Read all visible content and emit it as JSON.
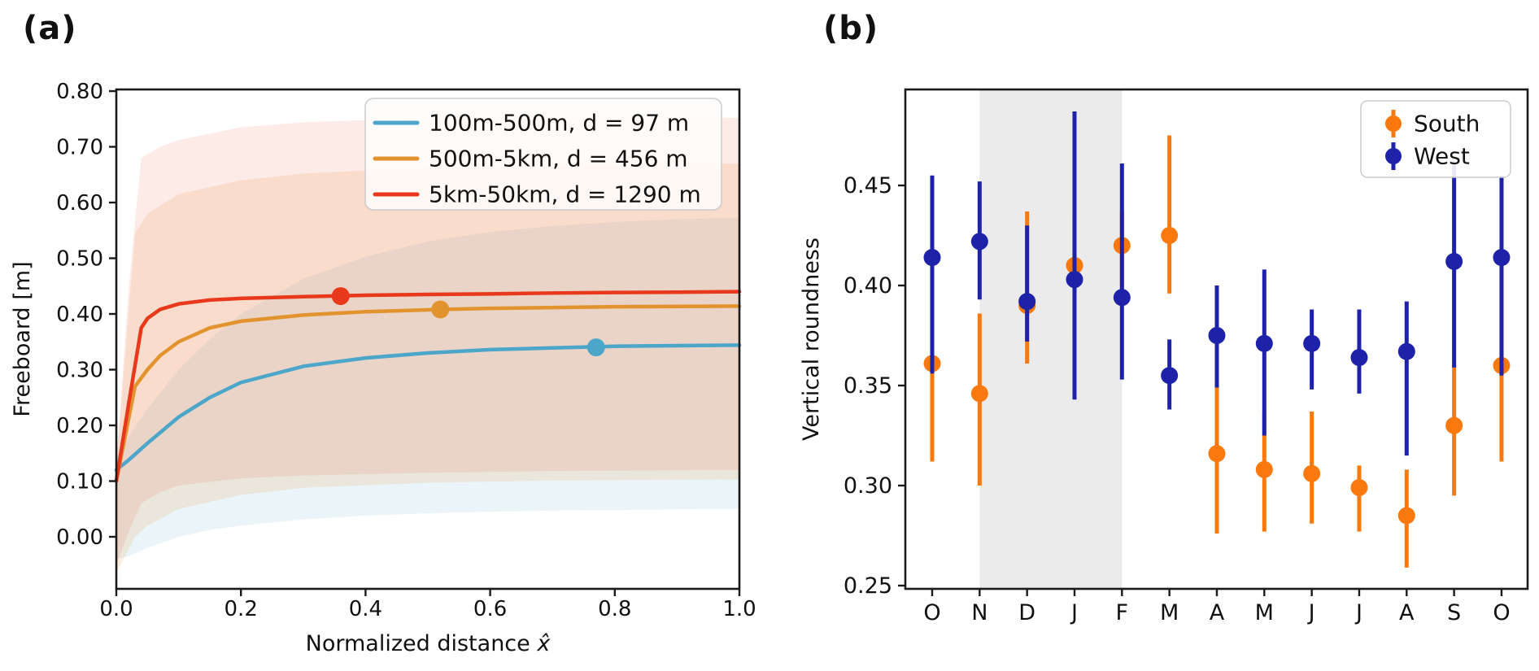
{
  "chart_data": [
    {
      "type": "line",
      "title": "(a)",
      "xlabel": "Normalized distance",
      "xlabel_variable": "x̂",
      "ylabel": "Freeboard [m]",
      "xlim": [
        0.0,
        1.0
      ],
      "ylim": [
        -0.09,
        0.805
      ],
      "xticks": [
        "0.0",
        "0.2",
        "0.4",
        "0.6",
        "0.8",
        "1.0"
      ],
      "yticks": [
        "0.00",
        "0.10",
        "0.20",
        "0.30",
        "0.40",
        "0.50",
        "0.60",
        "0.70",
        "0.80"
      ],
      "grid": "off",
      "legend_position": "upper right",
      "series": [
        {
          "name": "100m-500m, d = 97 m",
          "color": "#4BA6C9",
          "band_color": "rgba(75,166,201,0.11)",
          "marker_point": {
            "x": 0.77,
            "y": 0.34
          },
          "line": [
            [
              0,
              0.12
            ],
            [
              0.02,
              0.138
            ],
            [
              0.05,
              0.168
            ],
            [
              0.1,
              0.215
            ],
            [
              0.15,
              0.25
            ],
            [
              0.2,
              0.277
            ],
            [
              0.3,
              0.306
            ],
            [
              0.4,
              0.321
            ],
            [
              0.5,
              0.33
            ],
            [
              0.6,
              0.336
            ],
            [
              0.7,
              0.339
            ],
            [
              0.8,
              0.342
            ],
            [
              0.9,
              0.343
            ],
            [
              1,
              0.344
            ]
          ],
          "band_upper": [
            [
              0,
              0.14
            ],
            [
              0.02,
              0.18
            ],
            [
              0.05,
              0.23
            ],
            [
              0.1,
              0.3
            ],
            [
              0.15,
              0.355
            ],
            [
              0.2,
              0.4
            ],
            [
              0.3,
              0.463
            ],
            [
              0.4,
              0.503
            ],
            [
              0.5,
              0.53
            ],
            [
              0.6,
              0.547
            ],
            [
              0.7,
              0.558
            ],
            [
              0.8,
              0.565
            ],
            [
              0.9,
              0.57
            ],
            [
              1,
              0.573
            ]
          ],
          "band_lower": [
            [
              0,
              -0.04
            ],
            [
              0.02,
              -0.035
            ],
            [
              0.05,
              -0.02
            ],
            [
              0.1,
              0.0
            ],
            [
              0.15,
              0.012
            ],
            [
              0.2,
              0.02
            ],
            [
              0.3,
              0.031
            ],
            [
              0.4,
              0.038
            ],
            [
              0.5,
              0.042
            ],
            [
              0.6,
              0.045
            ],
            [
              0.7,
              0.047
            ],
            [
              0.8,
              0.048
            ],
            [
              0.9,
              0.049
            ],
            [
              1,
              0.05
            ]
          ]
        },
        {
          "name": "500m-5km, d = 456 m",
          "color": "#E2932E",
          "band_color": "rgba(226,147,46,0.15)",
          "marker_point": {
            "x": 0.52,
            "y": 0.408
          },
          "line": [
            [
              0,
              0.1
            ],
            [
              0.03,
              0.27
            ],
            [
              0.05,
              0.3
            ],
            [
              0.07,
              0.325
            ],
            [
              0.1,
              0.35
            ],
            [
              0.15,
              0.375
            ],
            [
              0.2,
              0.387
            ],
            [
              0.3,
              0.398
            ],
            [
              0.4,
              0.404
            ],
            [
              0.52,
              0.408
            ],
            [
              0.6,
              0.41
            ],
            [
              0.8,
              0.413
            ],
            [
              1,
              0.414
            ]
          ],
          "band_upper": [
            [
              0,
              0.13
            ],
            [
              0.03,
              0.545
            ],
            [
              0.05,
              0.58
            ],
            [
              0.1,
              0.615
            ],
            [
              0.2,
              0.64
            ],
            [
              0.3,
              0.652
            ],
            [
              0.5,
              0.663
            ],
            [
              0.7,
              0.668
            ],
            [
              1,
              0.67
            ]
          ],
          "band_lower": [
            [
              0,
              -0.065
            ],
            [
              0.03,
              0.0
            ],
            [
              0.05,
              0.02
            ],
            [
              0.1,
              0.05
            ],
            [
              0.2,
              0.075
            ],
            [
              0.3,
              0.088
            ],
            [
              0.5,
              0.097
            ],
            [
              0.7,
              0.101
            ],
            [
              1,
              0.103
            ]
          ]
        },
        {
          "name": "5km-50km, d = 1290 m",
          "color": "#E8391D",
          "band_color": "rgba(232,57,29,0.10)",
          "marker_point": {
            "x": 0.36,
            "y": 0.432
          },
          "line": [
            [
              0,
              0.1
            ],
            [
              0.02,
              0.24
            ],
            [
              0.04,
              0.375
            ],
            [
              0.05,
              0.392
            ],
            [
              0.07,
              0.408
            ],
            [
              0.1,
              0.418
            ],
            [
              0.15,
              0.425
            ],
            [
              0.2,
              0.428
            ],
            [
              0.3,
              0.431
            ],
            [
              0.4,
              0.4335
            ],
            [
              0.5,
              0.435
            ],
            [
              0.6,
              0.436
            ],
            [
              0.7,
              0.4375
            ],
            [
              0.8,
              0.4385
            ],
            [
              0.9,
              0.439
            ],
            [
              1,
              0.44
            ]
          ],
          "band_upper": [
            [
              0,
              0.13
            ],
            [
              0.02,
              0.45
            ],
            [
              0.04,
              0.68
            ],
            [
              0.07,
              0.7
            ],
            [
              0.1,
              0.712
            ],
            [
              0.2,
              0.735
            ],
            [
              0.3,
              0.744
            ],
            [
              0.5,
              0.752
            ],
            [
              0.7,
              0.755
            ],
            [
              1,
              0.752
            ]
          ],
          "band_lower": [
            [
              0,
              -0.05
            ],
            [
              0.02,
              0.01
            ],
            [
              0.04,
              0.06
            ],
            [
              0.07,
              0.08
            ],
            [
              0.1,
              0.092
            ],
            [
              0.2,
              0.105
            ],
            [
              0.3,
              0.11
            ],
            [
              0.5,
              0.115
            ],
            [
              0.7,
              0.118
            ],
            [
              1,
              0.12
            ]
          ]
        }
      ]
    },
    {
      "type": "scatter",
      "subtype": "errorbar",
      "title": "(b)",
      "xlabel": "",
      "ylabel": "Vertical roundness",
      "ylim": [
        0.248,
        0.498
      ],
      "yticks": [
        "0.25",
        "0.30",
        "0.35",
        "0.40",
        "0.45"
      ],
      "categories": [
        "O",
        "N",
        "D",
        "J",
        "F",
        "M",
        "A",
        "M",
        "J",
        "J",
        "A",
        "S",
        "O"
      ],
      "shaded_region": {
        "from": "N",
        "to": "F",
        "from_index": 1,
        "to_index": 4,
        "color": "#EBEBEB"
      },
      "grid": "off",
      "legend_position": "upper right",
      "series": [
        {
          "name": "South",
          "color": "#F9790E",
          "values": [
            0.361,
            0.346,
            0.39,
            0.41,
            0.42,
            0.425,
            0.316,
            0.308,
            0.306,
            0.299,
            0.285,
            0.33,
            0.36
          ],
          "err_lo": [
            0.312,
            0.3,
            0.361,
            0.373,
            0.398,
            0.396,
            0.276,
            0.277,
            0.281,
            0.277,
            0.259,
            0.295,
            0.312
          ],
          "err_hi": [
            0.408,
            0.386,
            0.437,
            0.436,
            0.437,
            0.475,
            0.35,
            0.337,
            0.337,
            0.31,
            0.308,
            0.36,
            0.408
          ]
        },
        {
          "name": "West",
          "color": "#1E22A8",
          "values": [
            0.414,
            0.422,
            0.392,
            0.403,
            0.394,
            0.355,
            0.375,
            0.371,
            0.371,
            0.364,
            0.367,
            0.412,
            0.414
          ],
          "err_lo": [
            0.356,
            0.393,
            0.372,
            0.343,
            0.353,
            0.338,
            0.349,
            0.325,
            0.348,
            0.346,
            0.315,
            0.359,
            0.355
          ],
          "err_hi": [
            0.455,
            0.452,
            0.43,
            0.487,
            0.461,
            0.373,
            0.4,
            0.408,
            0.388,
            0.388,
            0.392,
            0.462,
            0.455
          ]
        }
      ]
    }
  ]
}
